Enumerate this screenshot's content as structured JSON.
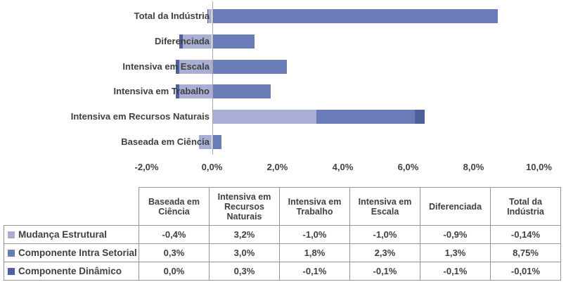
{
  "colors": {
    "series_mudanca": "#A9AFD4",
    "series_intra": "#6A7DB8",
    "series_dinamico": "#4F609B",
    "axis_line": "#A6A6A6",
    "text": "#404040",
    "table_border": "#969696"
  },
  "chart_data": {
    "type": "bar",
    "orientation": "horizontal",
    "stacked": true,
    "gridlines": false,
    "title": "",
    "xlabel": "",
    "ylabel": "",
    "categories": [
      "Total da Indústria",
      "Diferenciada",
      "Intensiva em Escala",
      "Intensiva em Trabalho",
      "Intensiva em Recursos Naturais",
      "Baseada em Ciência"
    ],
    "series": [
      {
        "name": "Mudança Estrutural",
        "color_key": "series_mudanca",
        "values_pct": [
          -0.14,
          -0.9,
          -1.0,
          -1.0,
          3.2,
          -0.4
        ]
      },
      {
        "name": "Componente Intra Setorial",
        "color_key": "series_intra",
        "values_pct": [
          8.75,
          1.3,
          2.3,
          1.8,
          3.0,
          0.3
        ]
      },
      {
        "name": "Componente Dinâmico",
        "color_key": "series_dinamico",
        "values_pct": [
          -0.01,
          -0.1,
          -0.1,
          -0.1,
          0.3,
          0.0
        ]
      }
    ],
    "x_axis": {
      "min_pct": -2,
      "max_pct": 10,
      "tick_values_pct": [
        -2,
        0,
        2,
        4,
        6,
        8,
        10
      ],
      "tick_labels": [
        "-2,0%",
        "0,0%",
        "2,0%",
        "4,0%",
        "6,0%",
        "8,0%",
        "10,0%"
      ]
    },
    "legend_position": "attached-table-left-column"
  },
  "table": {
    "column_headers": [
      "Baseada em Ciência",
      "Intensiva em Recursos Naturais",
      "Intensiva em Trabalho",
      "Intensiva em Escala",
      "Diferenciada",
      "Total da Indústria"
    ],
    "rows": [
      {
        "label": "Mudança Estrutural",
        "color_key": "series_mudanca",
        "values": [
          "-0,4%",
          "3,2%",
          "-1,0%",
          "-1,0%",
          "-0,9%",
          "-0,14%"
        ]
      },
      {
        "label": "Componente Intra Setorial",
        "color_key": "series_intra",
        "values": [
          "0,3%",
          "3,0%",
          "1,8%",
          "2,3%",
          "1,3%",
          "8,75%"
        ]
      },
      {
        "label": "Componente Dinâmico",
        "color_key": "series_dinamico",
        "values": [
          "0,0%",
          "0,3%",
          "-0,1%",
          "-0,1%",
          "-0,1%",
          "-0,01%"
        ]
      }
    ]
  }
}
